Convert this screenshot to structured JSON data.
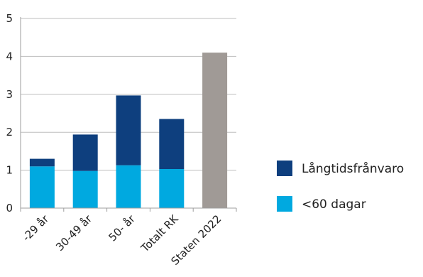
{
  "chart_data": {
    "type": "bar",
    "stacked": true,
    "categories": [
      "-29 år",
      "30-49 år",
      "50- år",
      "Totalt RK",
      "Staten 2022"
    ],
    "series": [
      {
        "name": "<60 dagar",
        "color": "#00A9E0",
        "values": [
          1.1,
          0.98,
          1.13,
          1.03,
          null
        ]
      },
      {
        "name": "Långtidsfrånvaro",
        "color": "#0E3F7E",
        "values": [
          0.2,
          0.96,
          1.84,
          1.32,
          null
        ]
      }
    ],
    "reference": {
      "category": "Staten 2022",
      "value": 4.1,
      "color": "#A09A96"
    },
    "ylim": [
      0,
      5
    ],
    "yticks": [
      0,
      1,
      2,
      3,
      4,
      5
    ],
    "grid": true,
    "legend_position": "right",
    "title": "",
    "xlabel": "",
    "ylabel": ""
  }
}
